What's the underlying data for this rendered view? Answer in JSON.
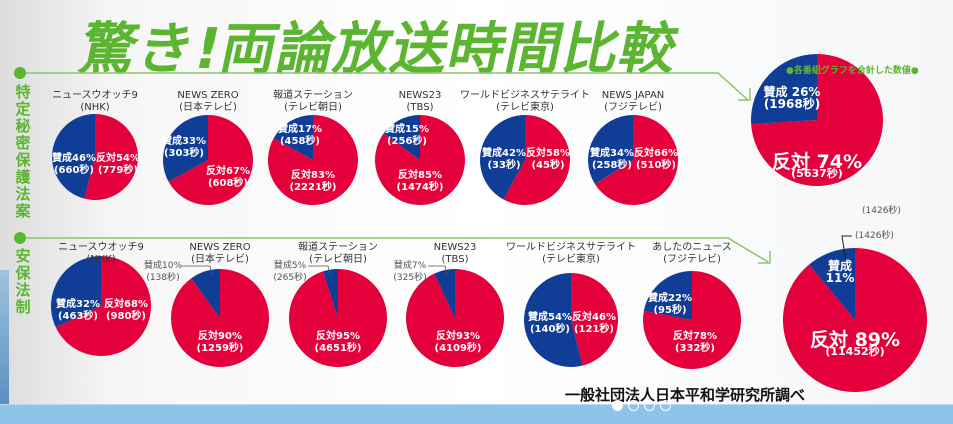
{
  "title": "驚き!両論放送時間比較",
  "colors": {
    "favor": "#103d96",
    "oppose": "#e4003a",
    "accent": "#5cb531"
  },
  "summary_heading": "●各番組グラフを合計した数値●",
  "source": "一般社団法人日本平和学研究所調べ",
  "carousel": {
    "count": 4,
    "active": 0
  },
  "chart_data": [
    {
      "type": "pie",
      "title": "特定秘密保護法案",
      "series_names": [
        "賛成",
        "反対"
      ],
      "pies": [
        {
          "name": "ニュースウオッチ9",
          "network": "(NHK)",
          "favor": {
            "label": "賛成46%",
            "pct": 46,
            "sec": "(660秒)"
          },
          "oppose": {
            "label": "反対54%",
            "pct": 54,
            "sec": "(779秒)"
          }
        },
        {
          "name": "NEWS ZERO",
          "network": "(日本テレビ)",
          "favor": {
            "label": "賛成33%",
            "pct": 33,
            "sec": "(303秒)"
          },
          "oppose": {
            "label": "反対67%",
            "pct": 67,
            "sec": "(608秒)"
          }
        },
        {
          "name": "報道ステーション",
          "network": "(テレビ朝日)",
          "favor": {
            "label": "賛成17%",
            "pct": 17,
            "sec": "(458秒)"
          },
          "oppose": {
            "label": "反対83%",
            "pct": 83,
            "sec": "(2221秒)"
          }
        },
        {
          "name": "NEWS23",
          "network": "(TBS)",
          "favor": {
            "label": "賛成15%",
            "pct": 15,
            "sec": "(256秒)"
          },
          "oppose": {
            "label": "反対85%",
            "pct": 85,
            "sec": "(1474秒)"
          }
        },
        {
          "name": "ワールドビジネスサテライト",
          "network": "(テレビ東京)",
          "favor": {
            "label": "賛成42%",
            "pct": 42,
            "sec": "(33秒)"
          },
          "oppose": {
            "label": "反対58%",
            "pct": 58,
            "sec": "(45秒)"
          }
        },
        {
          "name": "NEWS JAPAN",
          "network": "(フジテレビ)",
          "favor": {
            "label": "賛成34%",
            "pct": 34,
            "sec": "(258秒)"
          },
          "oppose": {
            "label": "反対66%",
            "pct": 66,
            "sec": "(510秒)"
          }
        },
        {
          "name": "",
          "network": "",
          "total": true,
          "favor": {
            "label": "賛成 26%",
            "pct": 26,
            "sec": "(1968秒)"
          },
          "oppose": {
            "label": "反対 74%",
            "pct": 74,
            "sec": "(5637秒)"
          },
          "extra_note": "(1426秒)"
        }
      ]
    },
    {
      "type": "pie",
      "title": "安保法制",
      "series_names": [
        "賛成",
        "反対"
      ],
      "pies": [
        {
          "name": "ニュースウオッチ9",
          "network": "(NHK)",
          "favor": {
            "label": "賛成32%",
            "pct": 32,
            "sec": "(463秒)"
          },
          "oppose": {
            "label": "反対68%",
            "pct": 68,
            "sec": "(980秒)"
          }
        },
        {
          "name": "NEWS ZERO",
          "network": "(日本テレビ)",
          "favor": {
            "label": "賛成10%",
            "pct": 10,
            "sec": "(138秒)"
          },
          "oppose": {
            "label": "反対90%",
            "pct": 90,
            "sec": "(1259秒)"
          }
        },
        {
          "name": "報道ステーション",
          "network": "(テレビ朝日)",
          "favor": {
            "label": "賛成5%",
            "pct": 5,
            "sec": "(265秒)"
          },
          "oppose": {
            "label": "反対95%",
            "pct": 95,
            "sec": "(4651秒)"
          }
        },
        {
          "name": "NEWS23",
          "network": "(TBS)",
          "favor": {
            "label": "賛成7%",
            "pct": 7,
            "sec": "(325秒)"
          },
          "oppose": {
            "label": "反対93%",
            "pct": 93,
            "sec": "(4109秒)"
          }
        },
        {
          "name": "ワールドビジネスサテライト",
          "network": "(テレビ東京)",
          "favor": {
            "label": "賛成54%",
            "pct": 54,
            "sec": "(140秒)"
          },
          "oppose": {
            "label": "反対46%",
            "pct": 46,
            "sec": "(121秒)"
          }
        },
        {
          "name": "あしたのニュース",
          "network": "(フジテレビ)",
          "favor": {
            "label": "賛成22%",
            "pct": 22,
            "sec": "(95秒)"
          },
          "oppose": {
            "label": "反対78%",
            "pct": 78,
            "sec": "(332秒)"
          }
        },
        {
          "name": "",
          "network": "",
          "total": true,
          "favor": {
            "label": "賛成 11%",
            "pct": 11,
            "sec": "(1426秒)"
          },
          "oppose": {
            "label": "反対 89%",
            "pct": 89,
            "sec": "(11452秒)"
          }
        }
      ]
    }
  ]
}
